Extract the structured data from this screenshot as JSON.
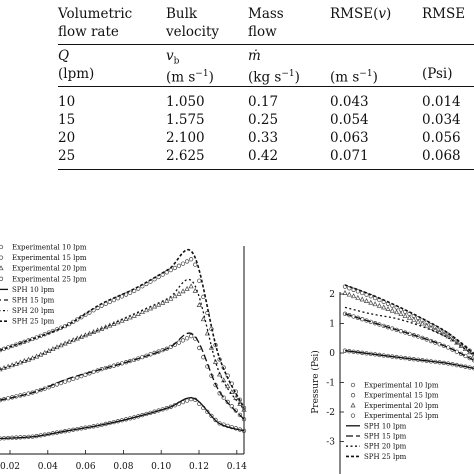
{
  "table": {
    "headers": [
      {
        "line1": "Volumetric",
        "line2": "flow rate",
        "sym": "Q",
        "unit": "(lpm)"
      },
      {
        "line1": "Bulk",
        "line2": "velocity",
        "sym": "v",
        "sub": "b",
        "unit": "(m s",
        "sup": "−1",
        "unit_end": ")"
      },
      {
        "line1": "Mass",
        "line2": "flow",
        "sym": "ṁ",
        "unit": "(kg s",
        "sup": "−1",
        "unit_end": ")"
      },
      {
        "line1": "RMSE(",
        "line1_var": "v",
        "line1_end": ")",
        "line2": "",
        "sym": "",
        "unit": "(m s",
        "sup": "−1",
        "unit_end": ")"
      },
      {
        "line1": "RMSE",
        "line2": "",
        "sym": "",
        "unit": "(Psi)"
      }
    ],
    "rows": [
      [
        "10",
        "1.050",
        "0.17",
        "0.043",
        "0.014"
      ],
      [
        "15",
        "1.575",
        "0.25",
        "0.054",
        "0.034"
      ],
      [
        "20",
        "2.100",
        "0.33",
        "0.063",
        "0.056"
      ],
      [
        "25",
        "2.625",
        "0.42",
        "0.071",
        "0.068"
      ]
    ]
  },
  "left_plot": {
    "x_ticks": [
      "0.02",
      "0.04",
      "0.06",
      "0.08",
      "0.10",
      "0.12",
      "0.14"
    ],
    "legend": [
      "Experimental 10 lpm",
      "Experimental 15 lpm",
      "Experimental 20 lpm",
      "Experimental 25 lpm",
      "SPH 10 lpm",
      "SPH 15 lpm",
      "SPH 20 lpm",
      "SPH 25 lpm"
    ]
  },
  "right_plot": {
    "ylabel": "Pressure (Psi)",
    "y_ticks": [
      "2",
      "1",
      "0",
      "-1",
      "-2",
      "-3"
    ],
    "legend": [
      "Experimental 10 lpm",
      "Experimental 15 lpm",
      "Experimental 20 lpm",
      "Experimental 25 lpm",
      "SPH 10 lpm",
      "SPH 15 lpm",
      "SPH 20 lpm",
      "SPH 25 lpm"
    ]
  },
  "chart_data": [
    {
      "type": "line",
      "title": "",
      "xlabel": "",
      "ylabel": "",
      "xlim": [
        0.0,
        0.145
      ],
      "ylim": [
        0,
        1
      ],
      "x": [
        0.0,
        0.02,
        0.04,
        0.06,
        0.08,
        0.1,
        0.115,
        0.13,
        0.145
      ],
      "series": [
        {
          "name": "Experimental 10 lpm",
          "values": [
            0.06,
            0.07,
            0.1,
            0.13,
            0.17,
            0.22,
            0.27,
            0.14,
            0.1
          ]
        },
        {
          "name": "Experimental 15 lpm",
          "values": [
            0.26,
            0.3,
            0.36,
            0.42,
            0.47,
            0.53,
            0.6,
            0.3,
            0.16
          ]
        },
        {
          "name": "Experimental 20 lpm",
          "values": [
            0.42,
            0.48,
            0.56,
            0.63,
            0.7,
            0.78,
            0.86,
            0.4,
            0.21
          ]
        },
        {
          "name": "Experimental 25 lpm",
          "values": [
            0.52,
            0.58,
            0.65,
            0.75,
            0.83,
            0.93,
            1.0,
            0.48,
            0.22
          ]
        },
        {
          "name": "SPH 10 lpm",
          "values": [
            0.06,
            0.07,
            0.1,
            0.13,
            0.17,
            0.22,
            0.27,
            0.14,
            0.1
          ]
        },
        {
          "name": "SPH 15 lpm",
          "values": [
            0.26,
            0.3,
            0.37,
            0.42,
            0.47,
            0.53,
            0.6,
            0.31,
            0.16
          ]
        },
        {
          "name": "SPH 20 lpm",
          "values": [
            0.42,
            0.48,
            0.56,
            0.63,
            0.71,
            0.79,
            0.87,
            0.41,
            0.21
          ]
        },
        {
          "name": "SPH 25 lpm",
          "values": [
            0.52,
            0.58,
            0.65,
            0.76,
            0.84,
            0.94,
            1.02,
            0.49,
            0.22
          ]
        }
      ]
    },
    {
      "type": "line",
      "title": "",
      "xlabel": "",
      "ylabel": "Pressure (Psi)",
      "xlim": [
        0,
        1
      ],
      "ylim": [
        -3.4,
        2.5
      ],
      "x": [
        0,
        0.2,
        0.4,
        0.6,
        0.8,
        1.0
      ],
      "series": [
        {
          "name": "Experimental 10 lpm",
          "values": [
            0.45,
            0.35,
            0.25,
            0.15,
            0.05,
            -0.1
          ]
        },
        {
          "name": "Experimental 15 lpm",
          "values": [
            1.6,
            1.35,
            1.1,
            0.85,
            0.55,
            0.15
          ]
        },
        {
          "name": "Experimental 20 lpm",
          "values": [
            2.25,
            1.95,
            1.65,
            1.3,
            0.9,
            0.3
          ]
        },
        {
          "name": "Experimental 25 lpm",
          "values": [
            2.45,
            2.15,
            1.8,
            1.4,
            0.95,
            0.35
          ]
        },
        {
          "name": "SPH 10 lpm",
          "values": [
            0.45,
            0.35,
            0.25,
            0.15,
            0.05,
            -0.1
          ]
        },
        {
          "name": "SPH 15 lpm",
          "values": [
            1.6,
            1.35,
            1.1,
            0.85,
            0.55,
            0.15
          ]
        },
        {
          "name": "SPH 20 lpm",
          "values": [
            1.8,
            1.6,
            1.45,
            1.2,
            0.85,
            0.3
          ]
        },
        {
          "name": "SPH 25 lpm",
          "values": [
            2.5,
            2.2,
            1.85,
            1.45,
            1.0,
            0.35
          ]
        }
      ]
    }
  ]
}
